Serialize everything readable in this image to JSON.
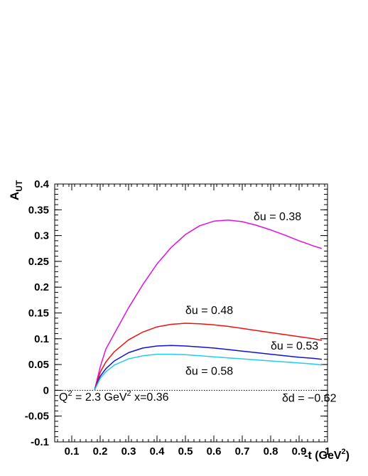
{
  "chart_data": {
    "type": "line",
    "xlabel": "-t (GeV",
    "xlabel_sup": "2",
    "xlabel_close": ")",
    "ylabel_main": "A",
    "ylabel_sub": "UT",
    "xlim": [
      0.04,
      1.0
    ],
    "ylim": [
      -0.1,
      0.4
    ],
    "x_ticks": [
      {
        "v": 0.1,
        "label": "0.1"
      },
      {
        "v": 0.2,
        "label": "0.2"
      },
      {
        "v": 0.3,
        "label": "0.3"
      },
      {
        "v": 0.4,
        "label": "0.4"
      },
      {
        "v": 0.5,
        "label": "0.5"
      },
      {
        "v": 0.6,
        "label": "0.6"
      },
      {
        "v": 0.7,
        "label": "0.7"
      },
      {
        "v": 0.8,
        "label": "0.8"
      },
      {
        "v": 0.9,
        "label": "0.9"
      },
      {
        "v": 1.0,
        "label": "1"
      }
    ],
    "y_ticks": [
      {
        "v": -0.1,
        "label": "-0.1"
      },
      {
        "v": -0.05,
        "label": "-0.05"
      },
      {
        "v": 0,
        "label": "0"
      },
      {
        "v": 0.05,
        "label": "0.05"
      },
      {
        "v": 0.1,
        "label": "0.1"
      },
      {
        "v": 0.15,
        "label": "0.15"
      },
      {
        "v": 0.2,
        "label": "0.2"
      },
      {
        "v": 0.25,
        "label": "0.25"
      },
      {
        "v": 0.3,
        "label": "0.3"
      },
      {
        "v": 0.35,
        "label": "0.35"
      },
      {
        "v": 0.4,
        "label": "0.4"
      }
    ],
    "zero_line": "dotted",
    "series": [
      {
        "label": "δu = 0.38",
        "color": "#e010e0",
        "x": [
          0.18,
          0.2,
          0.22,
          0.25,
          0.3,
          0.35,
          0.4,
          0.45,
          0.5,
          0.55,
          0.6,
          0.65,
          0.7,
          0.75,
          0.8,
          0.85,
          0.9,
          0.95,
          0.98
        ],
        "y": [
          0,
          0.045,
          0.08,
          0.11,
          0.16,
          0.205,
          0.245,
          0.277,
          0.302,
          0.319,
          0.328,
          0.33,
          0.327,
          0.32,
          0.311,
          0.301,
          0.29,
          0.28,
          0.275
        ]
      },
      {
        "label": "δu = 0.48",
        "color": "#ee1010",
        "x": [
          0.18,
          0.2,
          0.22,
          0.25,
          0.3,
          0.35,
          0.4,
          0.45,
          0.5,
          0.55,
          0.6,
          0.65,
          0.7,
          0.75,
          0.8,
          0.85,
          0.9,
          0.95,
          0.98
        ],
        "y": [
          0,
          0.035,
          0.055,
          0.075,
          0.098,
          0.113,
          0.123,
          0.128,
          0.13,
          0.129,
          0.127,
          0.124,
          0.12,
          0.116,
          0.112,
          0.108,
          0.104,
          0.1,
          0.097
        ]
      },
      {
        "label": "δu = 0.53",
        "color": "#1010dd",
        "x": [
          0.18,
          0.2,
          0.22,
          0.25,
          0.3,
          0.35,
          0.4,
          0.45,
          0.5,
          0.55,
          0.6,
          0.65,
          0.7,
          0.75,
          0.8,
          0.85,
          0.9,
          0.95,
          0.98
        ],
        "y": [
          0,
          0.027,
          0.042,
          0.057,
          0.073,
          0.082,
          0.086,
          0.087,
          0.086,
          0.084,
          0.082,
          0.079,
          0.076,
          0.073,
          0.07,
          0.067,
          0.064,
          0.062,
          0.06
        ]
      },
      {
        "label": "δu = 0.58",
        "color": "#22ccee",
        "x": [
          0.18,
          0.2,
          0.22,
          0.25,
          0.3,
          0.35,
          0.4,
          0.45,
          0.5,
          0.55,
          0.6,
          0.65,
          0.7,
          0.75,
          0.8,
          0.85,
          0.9,
          0.95,
          0.98
        ],
        "y": [
          0,
          0.023,
          0.036,
          0.049,
          0.061,
          0.067,
          0.07,
          0.07,
          0.069,
          0.067,
          0.065,
          0.063,
          0.061,
          0.059,
          0.057,
          0.055,
          0.053,
          0.051,
          0.049
        ]
      }
    ],
    "annotations": [
      {
        "key": "du038",
        "text": "δu = 0.38",
        "x": 0.74,
        "y": 0.33
      },
      {
        "key": "du048",
        "text": "δu = 0.48",
        "x": 0.5,
        "y": 0.148
      },
      {
        "key": "du053",
        "text": "δu = 0.53",
        "x": 0.8,
        "y": 0.079
      },
      {
        "key": "du058",
        "text": "δu = 0.58",
        "x": 0.5,
        "y": 0.03
      },
      {
        "key": "dd",
        "text": "δd = −0.62",
        "x": 0.84,
        "y": -0.022
      }
    ],
    "kinematics": {
      "q_main": "Q",
      "q_sup": "2",
      "q_eq": " = 2.3 GeV",
      "gev_sup": "2",
      "x_text": " x=0.36",
      "x": 0.055,
      "y": -0.02
    }
  }
}
